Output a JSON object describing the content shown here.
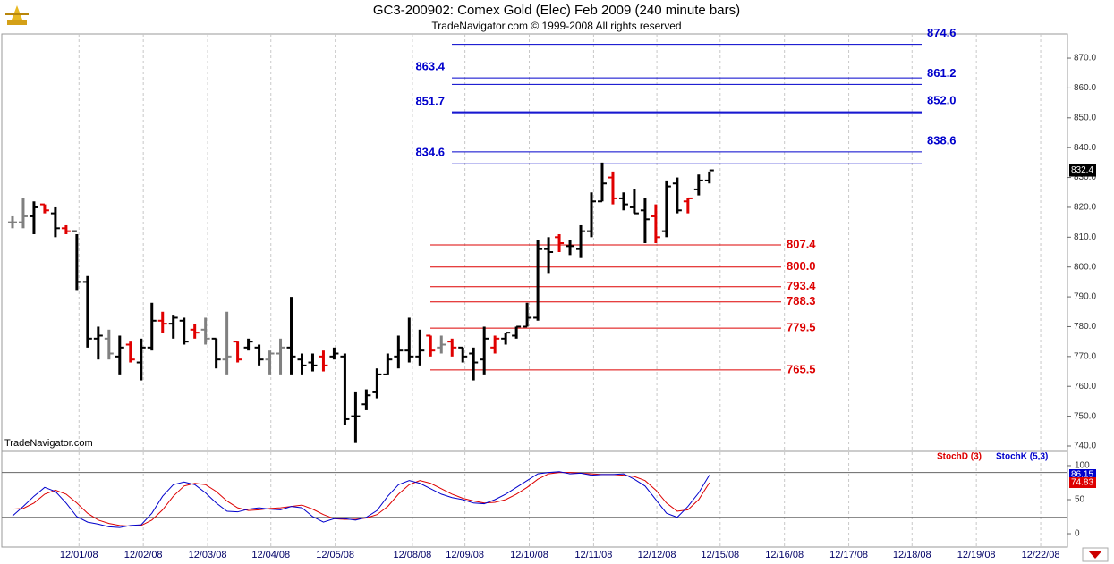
{
  "chart_data": [
    {
      "type": "ohlc",
      "title": "GC3-200902:  Comex Gold (Elec) Feb 2009  (240 minute bars)",
      "subtitle": "TradeNavigator.com © 1999-2008 All rights reserved",
      "watermark": "TradeNavigator.com",
      "open": [
        815,
        815,
        817,
        821,
        818,
        813,
        812,
        795,
        776,
        776,
        770,
        774,
        768,
        773,
        782,
        781,
        782,
        779,
        779,
        776,
        769,
        775,
        773,
        773,
        769,
        771,
        773,
        769,
        768,
        770,
        770,
        770,
        750,
        754,
        758,
        764,
        770,
        772,
        770,
        777,
        773,
        775,
        773,
        771,
        769,
        773,
        776,
        777,
        780,
        783,
        806,
        810,
        807,
        806,
        812,
        822,
        830,
        823,
        820,
        819,
        817,
        812,
        828,
        822,
        826,
        829
      ],
      "high": [
        817,
        823,
        822,
        821,
        820,
        814,
        811,
        797,
        780,
        779,
        777,
        775,
        776,
        788,
        785,
        784,
        783,
        781,
        783,
        776,
        785,
        775,
        776,
        774,
        772,
        776,
        790,
        771,
        771,
        772,
        773,
        771,
        758,
        759,
        766,
        771,
        777,
        783,
        779,
        777,
        777,
        776,
        773,
        773,
        780,
        777,
        778,
        780,
        788,
        809,
        810,
        811,
        809,
        814,
        825,
        835,
        832,
        825,
        826,
        823,
        821,
        829,
        830,
        823,
        831,
        832
      ],
      "low": [
        813,
        813,
        811,
        818,
        810,
        811,
        792,
        773,
        769,
        769,
        764,
        768,
        762,
        772,
        778,
        776,
        774,
        776,
        774,
        766,
        764,
        768,
        772,
        767,
        764,
        764,
        764,
        764,
        765,
        765,
        769,
        747,
        741,
        752,
        756,
        764,
        766,
        768,
        767,
        770,
        771,
        770,
        768,
        762,
        764,
        771,
        774,
        776,
        780,
        782,
        798,
        805,
        804,
        803,
        810,
        822,
        821,
        819,
        818,
        808,
        808,
        810,
        818,
        818,
        824,
        828
      ],
      "close": [
        815,
        817,
        820,
        819,
        813,
        812,
        795,
        776,
        777,
        771,
        773,
        769,
        773,
        782,
        781,
        783,
        775,
        778,
        776,
        769,
        770,
        769,
        775,
        769,
        771,
        773,
        770,
        767,
        767,
        767,
        771,
        749,
        750,
        757,
        764,
        769,
        772,
        770,
        772,
        772,
        774,
        773,
        770,
        768,
        776,
        776,
        778,
        780,
        783,
        806,
        805,
        808,
        807,
        812,
        822,
        828,
        823,
        821,
        818,
        816,
        810,
        827,
        819,
        823,
        829,
        832.4
      ],
      "bar_colors": [
        "#808080",
        "#808080",
        "#000000",
        "#e00000",
        "#000000",
        "#e00000",
        "#000000",
        "#000000",
        "#000000",
        "#808080",
        "#000000",
        "#e00000",
        "#000000",
        "#000000",
        "#e00000",
        "#000000",
        "#000000",
        "#e00000",
        "#808080",
        "#000000",
        "#808080",
        "#e00000",
        "#000000",
        "#000000",
        "#808080",
        "#808080",
        "#000000",
        "#000000",
        "#000000",
        "#e00000",
        "#000000",
        "#000000",
        "#000000",
        "#000000",
        "#000000",
        "#000000",
        "#000000",
        "#000000",
        "#000000",
        "#e00000",
        "#808080",
        "#e00000",
        "#000000",
        "#000000",
        "#000000",
        "#e00000",
        "#000000",
        "#000000",
        "#000000",
        "#000000",
        "#000000",
        "#e00000",
        "#000000",
        "#000000",
        "#000000",
        "#000000",
        "#e00000",
        "#000000",
        "#000000",
        "#000000",
        "#e00000",
        "#000000",
        "#000000",
        "#e00000",
        "#000000",
        "#000000"
      ],
      "xlim": [
        -1,
        98.4
      ],
      "xticks": [
        {
          "value": 6.2,
          "label": "12/01/08"
        },
        {
          "value": 12.2,
          "label": "12/02/08"
        },
        {
          "value": 18.2,
          "label": "12/03/08"
        },
        {
          "value": 24.1,
          "label": "12/04/08"
        },
        {
          "value": 30.1,
          "label": "12/05/08"
        },
        {
          "value": 37.3,
          "label": "12/08/08"
        },
        {
          "value": 42.2,
          "label": "12/09/08"
        },
        {
          "value": 48.2,
          "label": "12/10/08"
        },
        {
          "value": 54.2,
          "label": "12/11/08"
        },
        {
          "value": 60.1,
          "label": "12/12/08"
        },
        {
          "value": 66,
          "label": "12/15/08"
        },
        {
          "value": 72,
          "label": "12/16/08"
        },
        {
          "value": 78,
          "label": "12/17/08"
        },
        {
          "value": 83.9,
          "label": "12/18/08"
        },
        {
          "value": 89.9,
          "label": "12/19/08"
        },
        {
          "value": 95.9,
          "label": "12/22/08"
        }
      ],
      "ylim": [
        738.2,
        878.1
      ],
      "yticks": [
        {
          "value": 740,
          "label": "740.0"
        },
        {
          "value": 750,
          "label": "750.0"
        },
        {
          "value": 760,
          "label": "760.0"
        },
        {
          "value": 770,
          "label": "770.0"
        },
        {
          "value": 780,
          "label": "780.0"
        },
        {
          "value": 790,
          "label": "790.0"
        },
        {
          "value": 800,
          "label": "800.0"
        },
        {
          "value": 810,
          "label": "810.0"
        },
        {
          "value": 820,
          "label": "820.0"
        },
        {
          "value": 830,
          "label": "830.0"
        },
        {
          "value": 840,
          "label": "840.0"
        },
        {
          "value": 850,
          "label": "850.0"
        },
        {
          "value": 860,
          "label": "860.0"
        },
        {
          "value": 870,
          "label": "870.0"
        }
      ],
      "grid": true,
      "levels": [
        {
          "color": "#0000cc",
          "values": [
            874.6,
            863.4,
            861.2,
            851.7,
            852.0,
            838.6,
            834.6
          ],
          "value_labels": [
            "874.6",
            "863.4",
            "861.2",
            "851.7",
            "852.0",
            "838.6",
            "834.6"
          ],
          "label_sides": [
            "right",
            "left",
            "right",
            "left",
            "right",
            "right",
            "left"
          ]
        },
        {
          "color": "#dd0000",
          "values": [
            807.4,
            800.0,
            793.4,
            788.3,
            779.5,
            765.5
          ],
          "value_labels": [
            "807.4",
            "800.0",
            "793.4",
            "788.3",
            "779.5",
            "765.5"
          ],
          "label_sides": [
            "right",
            "right",
            "right",
            "right",
            "right",
            "right"
          ]
        }
      ]
    },
    {
      "type": "line",
      "series": [
        {
          "name": "StochD (3)",
          "color": "#dd0000",
          "values": [
            36,
            37,
            45,
            58,
            64,
            58,
            45,
            30,
            20,
            15,
            12,
            11,
            12,
            20,
            35,
            55,
            70,
            74,
            72,
            62,
            48,
            38,
            34,
            35,
            37,
            38,
            40,
            42,
            36,
            28,
            22,
            21,
            21,
            23,
            28,
            40,
            58,
            72,
            78,
            74,
            66,
            58,
            52,
            48,
            45,
            46,
            50,
            58,
            68,
            80,
            88,
            90,
            90,
            89,
            88,
            87,
            87,
            86,
            84,
            78,
            64,
            45,
            33,
            35,
            50,
            74.83
          ]
        },
        {
          "name": "StochK (5,3)",
          "color": "#0000cc",
          "values": [
            26,
            40,
            55,
            68,
            62,
            45,
            25,
            17,
            14,
            10,
            9,
            12,
            13,
            30,
            55,
            72,
            76,
            72,
            60,
            45,
            33,
            32,
            36,
            38,
            36,
            35,
            40,
            38,
            25,
            17,
            22,
            22,
            20,
            24,
            34,
            55,
            72,
            78,
            74,
            66,
            58,
            53,
            50,
            45,
            44,
            50,
            58,
            68,
            78,
            88,
            90,
            91,
            88,
            89,
            86,
            87,
            87,
            88,
            80,
            70,
            50,
            30,
            24,
            40,
            60,
            86.15
          ]
        }
      ],
      "ylim": [
        -19.7,
        121
      ],
      "yticks": [
        0,
        50,
        100
      ],
      "reference_lines": [
        90,
        24
      ]
    }
  ]
}
